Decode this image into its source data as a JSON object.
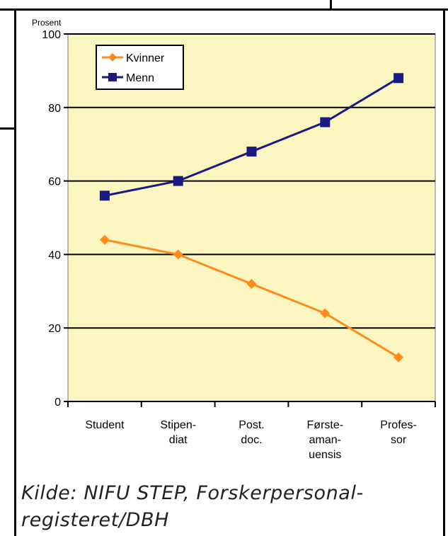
{
  "chart_data": {
    "type": "line",
    "ylabel": "Prosent",
    "ylim": [
      0,
      100
    ],
    "yticks": [
      0,
      20,
      40,
      60,
      80,
      100
    ],
    "grid": true,
    "legend_placement": "top-left",
    "plot_background": "#fbf6bf",
    "categories": [
      "Student",
      "Stipen-\ndiat",
      "Post.\ndoc.",
      "Første-\naman-\nuensis",
      "Profes-\nsor"
    ],
    "series": [
      {
        "name": "Kvinner",
        "color": "#ff8c1a",
        "marker": "diamond",
        "values": [
          44,
          40,
          32,
          24,
          12
        ]
      },
      {
        "name": "Menn",
        "color": "#1a1a80",
        "marker": "square",
        "values": [
          56,
          60,
          68,
          76,
          88
        ]
      }
    ]
  },
  "source_text": "Kilde: NIFU STEP, Forskerpersonal-registeret/DBH"
}
